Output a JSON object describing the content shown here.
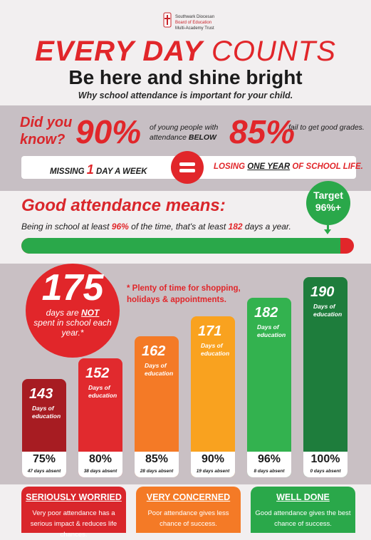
{
  "header": {
    "logo_lines": [
      "Southwark Diocesan",
      "Board of Education",
      "Multi-Academy Trust"
    ],
    "title_bold": "EVERY DAY",
    "title_light": "COUNTS",
    "subtitle": "Be here and shine bright",
    "tagline": "Why school attendance is important for your child."
  },
  "did_you_know": {
    "label": "Did you know?",
    "stat1": "90%",
    "stat1_text_a": "of young people with attendance",
    "stat1_text_b": "BELOW",
    "stat2": "85%",
    "stat2_text": "fail to get good grades.",
    "missing_a": "MISSING",
    "missing_n": "1",
    "missing_b": "DAY A WEEK",
    "losing_a": "LOSING",
    "losing_u": "ONE YEAR",
    "losing_b": "OF SCHOOL LIFE."
  },
  "good_attendance": {
    "title": "Good attendance means:",
    "text_a": "Being in school at least",
    "pct": "96%",
    "text_b": "of the time, that's at least",
    "days": "182",
    "text_c": "days a year.",
    "target_label": "Target",
    "target_value": "96%+",
    "progress_fraction": 0.96
  },
  "not_spent": {
    "number": "175",
    "text_a": "days are",
    "not": "NOT",
    "text_b": "spent in school each year.*",
    "note": "* Plenty of time for shopping, holidays & appointments."
  },
  "bars": [
    {
      "days": "143",
      "label": "Days of education",
      "pct": "75%",
      "absent": "47 days absent",
      "color": "#a71c22"
    },
    {
      "days": "152",
      "label": "Days of education",
      "pct": "80%",
      "absent": "38 days absent",
      "color": "#e12a2e"
    },
    {
      "days": "162",
      "label": "Days of education",
      "pct": "85%",
      "absent": "28 days absent",
      "color": "#f47a26"
    },
    {
      "days": "171",
      "label": "Days of education",
      "pct": "90%",
      "absent": "19 days absent",
      "color": "#f9a21f"
    },
    {
      "days": "182",
      "label": "Days of education",
      "pct": "96%",
      "absent": "8 days absent",
      "color": "#33b24f"
    },
    {
      "days": "190",
      "label": "Days of education",
      "pct": "100%",
      "absent": "0 days absent",
      "color": "#1e7d3c"
    }
  ],
  "cards": [
    {
      "title": "SERIOUSLY WORRIED",
      "body": "Very poor attendance has a serious impact & reduces life chances.",
      "color": "#d9262b"
    },
    {
      "title": "VERY CONCERNED",
      "body": "Poor attendance gives less chance of success.",
      "color": "#f47a26"
    },
    {
      "title": "WELL DONE",
      "body": "Good attendance gives the best chance of success.",
      "color": "#2aa84a"
    }
  ]
}
